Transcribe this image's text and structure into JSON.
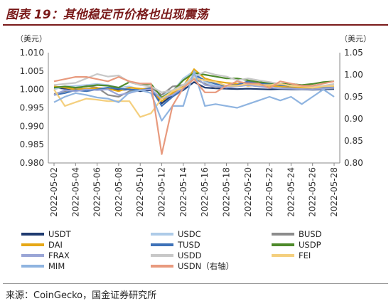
{
  "figure": {
    "title": "图表 19：其他稳定币价格也出现震荡",
    "source": "来源：CoinGecko，国金证券研究所"
  },
  "chart_data": {
    "type": "line",
    "left_unit": "（美元）",
    "right_unit": "（美元）",
    "ylim_left": [
      0.98,
      1.01
    ],
    "yticks_left": [
      "0.980",
      "0.985",
      "0.990",
      "0.995",
      "1.000",
      "1.005",
      "1.010"
    ],
    "ylim_right": [
      0.8,
      1.05
    ],
    "yticks_right": [
      "0.80",
      "0.85",
      "0.90",
      "0.95",
      "1.00",
      "1.05"
    ],
    "x": [
      "2022-05-02",
      "2022-05-03",
      "2022-05-04",
      "2022-05-05",
      "2022-05-06",
      "2022-05-07",
      "2022-05-08",
      "2022-05-09",
      "2022-05-10",
      "2022-05-11",
      "2022-05-12",
      "2022-05-13",
      "2022-05-14",
      "2022-05-15",
      "2022-05-16",
      "2022-05-17",
      "2022-05-18",
      "2022-05-19",
      "2022-05-20",
      "2022-05-21",
      "2022-05-22",
      "2022-05-23",
      "2022-05-24",
      "2022-05-25",
      "2022-05-26",
      "2022-05-27",
      "2022-05-28"
    ],
    "x_tick_labels": [
      "2022-05-02",
      "2022-05-04",
      "2022-05-06",
      "2022-05-08",
      "2022-05-10",
      "2022-05-12",
      "2022-05-14",
      "2022-05-16",
      "2022-05-18",
      "2022-05-20",
      "2022-05-22",
      "2022-05-24",
      "2022-05-26",
      "2022-05-28"
    ],
    "grid": false,
    "legend_position": "bottom",
    "series": [
      {
        "name": "USDT",
        "axis": "left",
        "color": "#1f3b70",
        "values": [
          1.0005,
          1.0002,
          1.0001,
          1.0,
          1.0003,
          1.0001,
          0.9998,
          1.0,
          0.9995,
          0.9998,
          0.9962,
          0.9985,
          0.9998,
          1.002,
          1.0005,
          1.0003,
          1.0002,
          1.0001,
          1.0002,
          1.0001,
          1.0,
          1.0001,
          1.0,
          1.0,
          0.9999,
          1.0,
          1.0001
        ]
      },
      {
        "name": "USDC",
        "axis": "left",
        "color": "#aecbe8",
        "values": [
          1.0,
          1.0008,
          1.001,
          1.0012,
          1.0015,
          1.0012,
          1.0005,
          1.0008,
          1.0,
          1.0005,
          0.9985,
          0.9995,
          1.003,
          1.005,
          1.002,
          1.001,
          1.0008,
          1.0008,
          1.0012,
          1.0008,
          1.001,
          1.001,
          1.0008,
          1.0006,
          1.0003,
          1.0005,
          1.0008
        ]
      },
      {
        "name": "BUSD",
        "axis": "left",
        "color": "#8c8c8c",
        "values": [
          0.9988,
          0.9995,
          1.0,
          1.001,
          1.0005,
          0.9985,
          0.998,
          0.9995,
          1.0,
          1.0005,
          0.9985,
          1.0008,
          1.0012,
          1.003,
          1.0015,
          1.0005,
          1.001,
          1.0015,
          1.002,
          1.0015,
          1.001,
          1.0008,
          1.0005,
          1.0005,
          1.0004,
          1.0002,
          1.0003
        ]
      },
      {
        "name": "DAI",
        "axis": "left",
        "color": "#e6a817",
        "values": [
          1.0008,
          1.0005,
          1.0,
          1.0002,
          1.0004,
          1.0002,
          0.9995,
          1.0005,
          1.0002,
          1.0,
          0.9968,
          0.999,
          1.0008,
          1.0055,
          1.003,
          1.0022,
          1.0018,
          1.0015,
          1.001,
          1.0012,
          1.001,
          1.0008,
          1.0008,
          1.0005,
          1.0005,
          1.0006,
          1.0008
        ]
      },
      {
        "name": "TUSD",
        "axis": "left",
        "color": "#3f72b8",
        "values": [
          0.9985,
          0.999,
          0.9998,
          0.9995,
          1.0,
          1.0005,
          1.0002,
          1.0,
          0.9998,
          1.0002,
          0.9955,
          0.998,
          1.0,
          1.004,
          1.0025,
          1.0015,
          1.001,
          1.0012,
          1.0022,
          1.0018,
          1.0015,
          1.0012,
          1.001,
          1.001,
          1.0008,
          1.0006,
          1.0005
        ]
      },
      {
        "name": "USDP",
        "axis": "left",
        "color": "#4e8a2b",
        "values": [
          1.0005,
          1.0008,
          1.0005,
          1.0008,
          1.0012,
          1.001,
          1.0005,
          1.002,
          1.0012,
          1.0015,
          0.9978,
          0.9995,
          1.0025,
          1.0045,
          1.004,
          1.0035,
          1.003,
          1.003,
          1.0025,
          1.002,
          1.0018,
          1.0015,
          1.0015,
          1.0012,
          1.0015,
          1.002,
          1.0022
        ]
      },
      {
        "name": "FRAX",
        "axis": "left",
        "color": "#9aa5d6",
        "values": [
          0.9985,
          0.9998,
          0.9995,
          1.0,
          0.9998,
          1.0,
          0.9985,
          0.999,
          0.9998,
          1.0,
          0.9975,
          0.9985,
          1.0005,
          1.004,
          1.0012,
          1.0008,
          1.0005,
          1.0008,
          1.0012,
          1.0008,
          1.0005,
          1.0003,
          1.0002,
          1.0001,
          1.0,
          1.0002,
          1.0005
        ]
      },
      {
        "name": "USDD",
        "axis": "left",
        "color": "#c8c8c8",
        "values": [
          1.0012,
          1.0015,
          1.0018,
          1.003,
          1.0042,
          1.0035,
          1.0038,
          1.002,
          1.0012,
          1.0008,
          0.9992,
          0.9998,
          1.0012,
          1.0035,
          1.0048,
          1.004,
          1.0035,
          1.0025,
          1.003,
          1.0025,
          1.002,
          1.0015,
          1.001,
          1.0008,
          1.0008,
          1.001,
          1.0015
        ]
      },
      {
        "name": "FEI",
        "axis": "left",
        "color": "#f4cf7e",
        "values": [
          1.0,
          0.9955,
          0.9965,
          0.9975,
          0.9972,
          0.9968,
          0.9968,
          0.9968,
          0.9925,
          0.9935,
          0.9975,
          0.9995,
          1.0005,
          1.003,
          1.0025,
          1.002,
          1.001,
          1.001,
          1.0015,
          1.0012,
          1.0012,
          1.0015,
          1.001,
          1.0008,
          1.0005,
          1.0008,
          1.001
        ]
      },
      {
        "name": "MIM",
        "axis": "left",
        "color": "#8fb4e0",
        "values": [
          0.9965,
          0.998,
          0.999,
          0.9985,
          0.9978,
          0.9975,
          0.9965,
          0.9992,
          0.9998,
          0.999,
          0.9915,
          0.9955,
          0.9955,
          1.005,
          0.9955,
          0.996,
          0.9955,
          0.995,
          0.996,
          0.997,
          0.998,
          0.997,
          0.998,
          0.996,
          0.998,
          1.0,
          0.998
        ]
      },
      {
        "name": "USDN（右轴）",
        "axis": "right",
        "color": "#e89a7e",
        "values": [
          0.985,
          0.99,
          0.995,
          0.995,
          0.99,
          0.985,
          0.995,
          0.985,
          0.98,
          0.98,
          0.82,
          0.93,
          0.97,
          0.99,
          0.96,
          0.96,
          0.975,
          0.985,
          0.98,
          0.98,
          0.97,
          0.985,
          0.98,
          0.975,
          0.975,
          0.98,
          0.985
        ]
      }
    ]
  }
}
